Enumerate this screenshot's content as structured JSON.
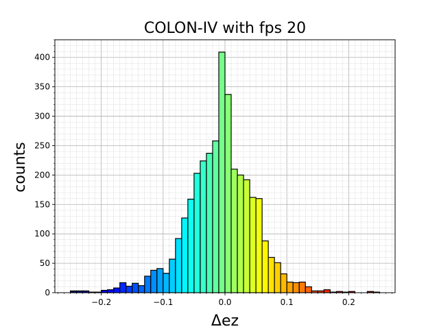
{
  "chart_data": {
    "type": "bar",
    "title": "COLON-IV with fps 20",
    "xlabel": "Δez",
    "ylabel": "counts",
    "xlim": [
      -0.275,
      0.275
    ],
    "ylim": [
      0,
      430
    ],
    "grid": true,
    "legend": "none",
    "bin_width": 0.01,
    "bin_starts": [
      -0.25,
      -0.24,
      -0.23,
      -0.22,
      -0.21,
      -0.2,
      -0.19,
      -0.18,
      -0.17,
      -0.16,
      -0.15,
      -0.14,
      -0.13,
      -0.12,
      -0.11,
      -0.1,
      -0.09,
      -0.08,
      -0.07,
      -0.06,
      -0.05,
      -0.04,
      -0.03,
      -0.02,
      -0.01,
      0.0,
      0.01,
      0.02,
      0.03,
      0.04,
      0.05,
      0.06,
      0.07,
      0.08,
      0.09,
      0.1,
      0.11,
      0.12,
      0.13,
      0.14,
      0.15,
      0.16,
      0.17,
      0.18,
      0.19,
      0.2,
      0.21,
      0.22,
      0.23,
      0.24
    ],
    "values": [
      3,
      3,
      3,
      1,
      1,
      4,
      5,
      8,
      17,
      11,
      16,
      12,
      28,
      38,
      41,
      33,
      57,
      92,
      127,
      159,
      203,
      224,
      237,
      258,
      409,
      337,
      210,
      200,
      192,
      162,
      160,
      88,
      60,
      51,
      32,
      18,
      17,
      18,
      10,
      3,
      3,
      5,
      1,
      2,
      1,
      2,
      0,
      0,
      2,
      1
    ],
    "x_ticks": [
      -0.2,
      -0.1,
      0.0,
      0.1,
      0.2
    ],
    "x_tick_labels": [
      "−0.2",
      "−0.1",
      "0.0",
      "0.1",
      "0.2"
    ],
    "y_ticks": [
      0,
      50,
      100,
      150,
      200,
      250,
      300,
      350,
      400
    ],
    "y_tick_labels": [
      "0",
      "50",
      "100",
      "150",
      "200",
      "250",
      "300",
      "350",
      "400"
    ],
    "colormap": "jet",
    "bar_edge_color": "#000000"
  }
}
